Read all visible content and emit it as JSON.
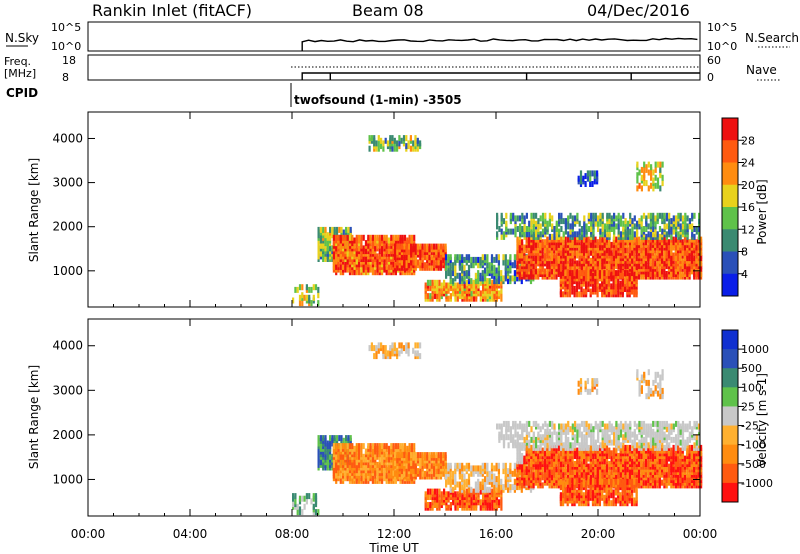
{
  "header": {
    "radar": "Rankin Inlet (fitACF)",
    "beam": "Beam 08",
    "date": "04/Dec/2016"
  },
  "noise_panel": {
    "left_label": "N.Sky",
    "right_label": "N.Search",
    "left_ticks": [
      "10^5",
      "10^0"
    ],
    "right_ticks": [
      "10^5",
      "10^0"
    ]
  },
  "freq_panel": {
    "left_label_line1": "Freq.",
    "left_label_line2": "[MHz]",
    "right_label": "Nave",
    "left_ticks": [
      "18",
      "8"
    ],
    "right_ticks": [
      "60",
      "0"
    ]
  },
  "cpid": {
    "label": "CPID",
    "program": "twofsound (1-min) -3505"
  },
  "x_axis": {
    "label": "Time UT",
    "ticks": [
      "00:00",
      "04:00",
      "08:00",
      "12:00",
      "16:00",
      "20:00",
      "00:00"
    ]
  },
  "colors": {
    "power": [
      "#0a1ee8",
      "#2a50b8",
      "#3a8a72",
      "#5fc24a",
      "#e8d21c",
      "#ff8c10",
      "#ff5a10",
      "#ee1010"
    ],
    "velocity": [
      "#ff1010",
      "#ff5a10",
      "#ff8c10",
      "#ffb030",
      "#c8c8c8",
      "#5fc24a",
      "#3a8a72",
      "#2a50b8",
      "#1030d0"
    ]
  },
  "chart_data": [
    {
      "type": "heatmap",
      "name": "power",
      "xlabel": "Time UT",
      "ylabel": "Slant Range [km]",
      "x_range_hours": [
        0,
        24
      ],
      "ylim": [
        180,
        4600
      ],
      "y_ticks": [
        "1000",
        "2000",
        "3000",
        "4000"
      ],
      "colorbar_label": "Power [dB]",
      "colorbar_ticks": [
        "4",
        "8",
        "12",
        "16",
        "20",
        "24",
        "28"
      ],
      "data_coverage_start_hour": 8
    },
    {
      "type": "heatmap",
      "name": "velocity",
      "xlabel": "Time UT",
      "ylabel": "Slant Range [km]",
      "x_range_hours": [
        0,
        24
      ],
      "ylim": [
        180,
        4600
      ],
      "y_ticks": [
        "1000",
        "2000",
        "3000",
        "4000"
      ],
      "colorbar_label": "Velocity [m s-1]",
      "colorbar_ticks": [
        "1000",
        "500",
        "100",
        "25",
        "-25",
        "-100",
        "-500",
        "-1000"
      ],
      "data_coverage_start_hour": 8
    }
  ]
}
